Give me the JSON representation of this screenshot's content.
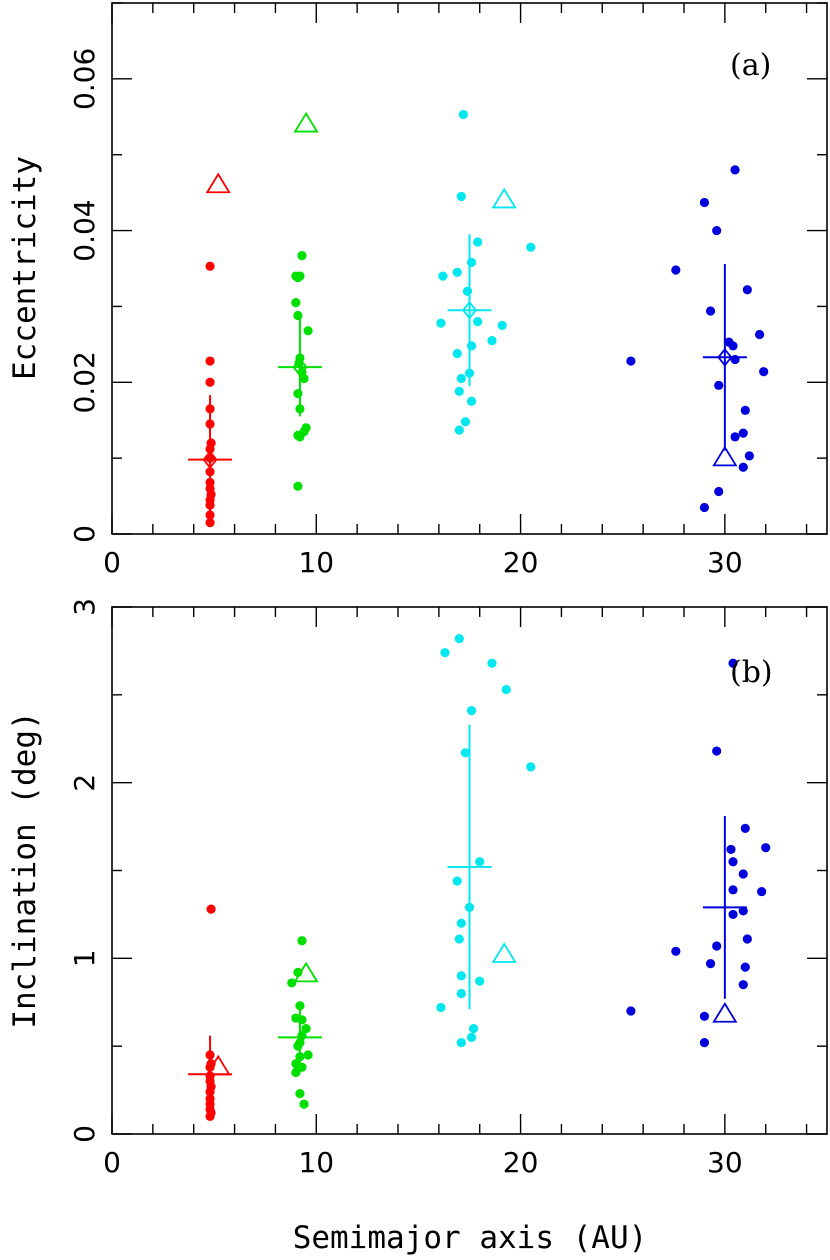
{
  "figure": {
    "xlabel": "Semimajor axis (AU)",
    "colors": {
      "red": "#ff0000",
      "green": "#00e000",
      "cyan": "#00e8ee",
      "blue": "#0000dd"
    }
  },
  "chart_data": [
    {
      "type": "scatter",
      "panel_label": "(a)",
      "xlabel": "Semimajor axis (AU)",
      "ylabel": "Eccentricity",
      "xlim": [
        0,
        35
      ],
      "ylim": [
        0,
        0.07
      ],
      "x_ticks": [
        0,
        10,
        20,
        30
      ],
      "y_ticks": [
        0,
        0.02,
        0.04,
        0.06
      ],
      "y_tick_labels": [
        "0",
        "0.02",
        "0.04",
        "0.06"
      ],
      "series": [
        {
          "color": "red",
          "points": [
            [
              4.8,
              0.0353
            ],
            [
              4.8,
              0.0228
            ],
            [
              4.8,
              0.02
            ],
            [
              4.8,
              0.0165
            ],
            [
              4.8,
              0.0145
            ],
            [
              4.85,
              0.012
            ],
            [
              4.8,
              0.0112
            ],
            [
              4.8,
              0.01
            ],
            [
              4.8,
              0.0082
            ],
            [
              4.8,
              0.0068
            ],
            [
              4.8,
              0.006
            ],
            [
              4.85,
              0.0052
            ],
            [
              4.8,
              0.0045
            ],
            [
              4.8,
              0.0038
            ],
            [
              4.8,
              0.0025
            ],
            [
              4.8,
              0.0015
            ]
          ],
          "mean": {
            "x": 4.8,
            "y": 0.0098,
            "err": 0.0085
          },
          "actual": {
            "x": 5.2,
            "y": 0.046
          }
        },
        {
          "color": "green",
          "points": [
            [
              9.0,
              0.034
            ],
            [
              9.2,
              0.034
            ],
            [
              9.1,
              0.0338
            ],
            [
              9.3,
              0.0367
            ],
            [
              9.0,
              0.0305
            ],
            [
              9.1,
              0.0288
            ],
            [
              9.6,
              0.0268
            ],
            [
              9.2,
              0.0232
            ],
            [
              9.15,
              0.0225
            ],
            [
              9.3,
              0.0213
            ],
            [
              9.4,
              0.0205
            ],
            [
              9.1,
              0.0185
            ],
            [
              9.2,
              0.0165
            ],
            [
              9.5,
              0.014
            ],
            [
              9.4,
              0.0135
            ],
            [
              9.1,
              0.013
            ],
            [
              9.2,
              0.0128
            ],
            [
              9.1,
              0.0063
            ]
          ],
          "mean": {
            "x": 9.2,
            "y": 0.022,
            "err": 0.0065
          },
          "actual": {
            "x": 9.5,
            "y": 0.054
          }
        },
        {
          "color": "cyan",
          "points": [
            [
              17.2,
              0.0553
            ],
            [
              17.1,
              0.0445
            ],
            [
              17.9,
              0.0385
            ],
            [
              17.6,
              0.0358
            ],
            [
              16.9,
              0.0345
            ],
            [
              16.2,
              0.034
            ],
            [
              17.4,
              0.032
            ],
            [
              16.1,
              0.0278
            ],
            [
              17.9,
              0.028
            ],
            [
              19.1,
              0.0275
            ],
            [
              18.6,
              0.0255
            ],
            [
              17.6,
              0.0248
            ],
            [
              16.9,
              0.0238
            ],
            [
              17.5,
              0.0212
            ],
            [
              17.1,
              0.0205
            ],
            [
              17.0,
              0.0188
            ],
            [
              17.6,
              0.0175
            ],
            [
              17.3,
              0.0148
            ],
            [
              17.0,
              0.0137
            ],
            [
              20.5,
              0.0378
            ]
          ],
          "mean": {
            "x": 17.5,
            "y": 0.0295,
            "err": 0.01
          },
          "actual": {
            "x": 19.2,
            "y": 0.044
          }
        },
        {
          "color": "blue",
          "points": [
            [
              30.5,
              0.048
            ],
            [
              29.0,
              0.0437
            ],
            [
              29.6,
              0.04
            ],
            [
              27.6,
              0.0348
            ],
            [
              31.1,
              0.0322
            ],
            [
              29.3,
              0.0294
            ],
            [
              31.7,
              0.0263
            ],
            [
              30.2,
              0.0253
            ],
            [
              30.4,
              0.0248
            ],
            [
              30.5,
              0.023
            ],
            [
              31.9,
              0.0214
            ],
            [
              25.4,
              0.0228
            ],
            [
              29.7,
              0.0196
            ],
            [
              31.0,
              0.0163
            ],
            [
              30.9,
              0.0133
            ],
            [
              30.5,
              0.0128
            ],
            [
              31.2,
              0.0103
            ],
            [
              30.9,
              0.0088
            ],
            [
              29.7,
              0.0056
            ],
            [
              29.0,
              0.0035
            ]
          ],
          "mean": {
            "x": 30.0,
            "y": 0.0233,
            "err": 0.0123
          },
          "actual": {
            "x": 30.0,
            "y": 0.01
          }
        }
      ]
    },
    {
      "type": "scatter",
      "panel_label": "(b)",
      "xlabel": "Semimajor axis (AU)",
      "ylabel": "Inclination (deg)",
      "xlim": [
        0,
        35
      ],
      "ylim": [
        0,
        3
      ],
      "x_ticks": [
        0,
        10,
        20,
        30
      ],
      "y_ticks": [
        0,
        1,
        2,
        3
      ],
      "y_tick_labels": [
        "0",
        "1",
        "2",
        "3"
      ],
      "series": [
        {
          "color": "red",
          "points": [
            [
              4.85,
              1.28
            ],
            [
              4.8,
              0.45
            ],
            [
              4.85,
              0.4
            ],
            [
              4.8,
              0.38
            ],
            [
              4.8,
              0.33
            ],
            [
              4.8,
              0.3
            ],
            [
              4.85,
              0.27
            ],
            [
              4.8,
              0.24
            ],
            [
              4.8,
              0.2
            ],
            [
              4.8,
              0.17
            ],
            [
              4.8,
              0.14
            ],
            [
              4.85,
              0.12
            ],
            [
              4.8,
              0.1
            ]
          ],
          "mean": {
            "x": 4.8,
            "y": 0.34,
            "err": 0.22
          },
          "actual": {
            "x": 5.2,
            "y": 0.38
          }
        },
        {
          "color": "green",
          "points": [
            [
              9.3,
              1.1
            ],
            [
              9.1,
              0.92
            ],
            [
              8.8,
              0.86
            ],
            [
              9.2,
              0.73
            ],
            [
              9.0,
              0.66
            ],
            [
              9.3,
              0.65
            ],
            [
              9.5,
              0.6
            ],
            [
              9.3,
              0.56
            ],
            [
              9.2,
              0.52
            ],
            [
              9.1,
              0.5
            ],
            [
              9.6,
              0.45
            ],
            [
              9.2,
              0.44
            ],
            [
              9.0,
              0.4
            ],
            [
              9.3,
              0.38
            ],
            [
              9.0,
              0.35
            ],
            [
              9.2,
              0.23
            ],
            [
              9.4,
              0.17
            ]
          ],
          "mean": {
            "x": 9.2,
            "y": 0.55,
            "err": 0.2
          },
          "actual": {
            "x": 9.5,
            "y": 0.91
          }
        },
        {
          "color": "cyan",
          "points": [
            [
              17.0,
              2.82
            ],
            [
              16.3,
              2.74
            ],
            [
              18.6,
              2.68
            ],
            [
              19.3,
              2.53
            ],
            [
              17.6,
              2.41
            ],
            [
              17.3,
              2.17
            ],
            [
              20.5,
              2.09
            ],
            [
              18.0,
              1.55
            ],
            [
              16.9,
              1.44
            ],
            [
              17.5,
              1.29
            ],
            [
              17.1,
              1.2
            ],
            [
              17.0,
              1.11
            ],
            [
              17.1,
              0.9
            ],
            [
              18.0,
              0.87
            ],
            [
              17.1,
              0.8
            ],
            [
              16.1,
              0.72
            ],
            [
              17.7,
              0.6
            ],
            [
              17.6,
              0.55
            ],
            [
              17.1,
              0.52
            ]
          ],
          "mean": {
            "x": 17.5,
            "y": 1.52,
            "err": 0.81
          },
          "actual": {
            "x": 19.2,
            "y": 1.02
          }
        },
        {
          "color": "blue",
          "points": [
            [
              30.4,
              2.68
            ],
            [
              29.6,
              2.18
            ],
            [
              31.0,
              1.74
            ],
            [
              32.0,
              1.63
            ],
            [
              30.3,
              1.62
            ],
            [
              30.4,
              1.55
            ],
            [
              30.9,
              1.48
            ],
            [
              30.4,
              1.39
            ],
            [
              31.8,
              1.38
            ],
            [
              30.9,
              1.27
            ],
            [
              30.4,
              1.25
            ],
            [
              31.1,
              1.11
            ],
            [
              29.6,
              1.07
            ],
            [
              27.6,
              1.04
            ],
            [
              29.3,
              0.97
            ],
            [
              31.0,
              0.95
            ],
            [
              30.9,
              0.85
            ],
            [
              25.4,
              0.7
            ],
            [
              29.0,
              0.67
            ],
            [
              29.0,
              0.52
            ]
          ],
          "mean": {
            "x": 30.0,
            "y": 1.29,
            "err": 0.52
          },
          "actual": {
            "x": 30.0,
            "y": 0.68
          }
        }
      ]
    }
  ]
}
